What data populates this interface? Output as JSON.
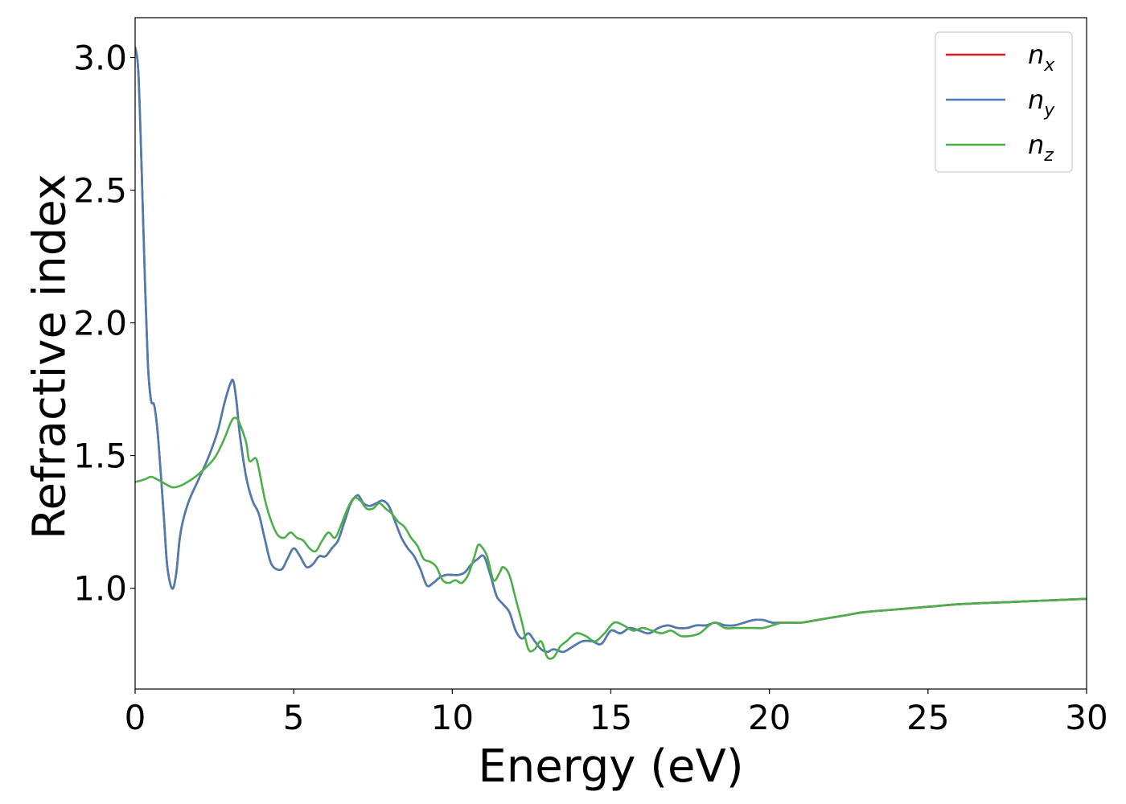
{
  "chart_data": {
    "type": "line",
    "title": "",
    "xlabel": "Energy (eV)",
    "ylabel": "Refractive index",
    "xlim": [
      0,
      30
    ],
    "ylim": [
      0.62,
      3.15
    ],
    "xticks": [
      0,
      5,
      10,
      15,
      20,
      25,
      30
    ],
    "xtick_labels": [
      "0",
      "5",
      "10",
      "15",
      "20",
      "25",
      "30"
    ],
    "yticks": [
      1.0,
      1.5,
      2.0,
      2.5,
      3.0
    ],
    "ytick_labels": [
      "1.0",
      "1.5",
      "2.0",
      "2.5",
      "3.0"
    ],
    "grid": false,
    "legend": {
      "position": "top-right"
    },
    "series": [
      {
        "name": "n",
        "name_sub": "x",
        "color": "#e41a1c",
        "x": [
          0,
          0.1,
          0.2,
          0.3,
          0.4,
          0.5,
          0.6,
          0.7,
          0.8,
          0.9,
          1.0,
          1.1,
          1.2,
          1.3,
          1.4,
          1.5,
          1.7,
          2.0,
          2.3,
          2.6,
          2.8,
          3.0,
          3.1,
          3.2,
          3.3,
          3.5,
          3.7,
          3.9,
          4.1,
          4.3,
          4.6,
          4.8,
          5.0,
          5.2,
          5.4,
          5.6,
          5.8,
          6.0,
          6.2,
          6.4,
          6.6,
          6.8,
          7.0,
          7.1,
          7.2,
          7.4,
          7.6,
          7.8,
          8.0,
          8.2,
          8.4,
          8.6,
          8.8,
          9.0,
          9.2,
          9.4,
          9.6,
          9.8,
          10.0,
          10.2,
          10.4,
          10.6,
          10.8,
          11.0,
          11.2,
          11.4,
          11.6,
          11.8,
          12.0,
          12.2,
          12.4,
          12.6,
          12.8,
          13.0,
          13.2,
          13.5,
          13.8,
          14.1,
          14.4,
          14.7,
          15.0,
          15.3,
          15.6,
          15.9,
          16.2,
          16.5,
          16.8,
          17.1,
          17.4,
          17.7,
          18.0,
          18.3,
          18.6,
          18.9,
          19.2,
          19.5,
          19.8,
          20.1,
          20.4,
          20.7,
          21.0,
          21.5,
          22.0,
          22.5,
          23,
          24,
          25,
          26,
          27,
          28,
          29,
          30
        ],
        "y": [
          3.04,
          2.95,
          2.6,
          2.2,
          1.85,
          1.71,
          1.69,
          1.6,
          1.45,
          1.28,
          1.1,
          1.02,
          1.0,
          1.06,
          1.18,
          1.25,
          1.33,
          1.41,
          1.49,
          1.59,
          1.69,
          1.77,
          1.78,
          1.7,
          1.58,
          1.42,
          1.33,
          1.28,
          1.18,
          1.09,
          1.07,
          1.11,
          1.15,
          1.12,
          1.08,
          1.09,
          1.12,
          1.12,
          1.15,
          1.18,
          1.25,
          1.32,
          1.35,
          1.34,
          1.32,
          1.31,
          1.32,
          1.33,
          1.31,
          1.25,
          1.19,
          1.15,
          1.12,
          1.07,
          1.01,
          1.02,
          1.04,
          1.05,
          1.05,
          1.05,
          1.06,
          1.09,
          1.11,
          1.12,
          1.05,
          0.97,
          0.94,
          0.91,
          0.84,
          0.81,
          0.83,
          0.8,
          0.77,
          0.76,
          0.77,
          0.76,
          0.78,
          0.8,
          0.8,
          0.79,
          0.84,
          0.83,
          0.85,
          0.84,
          0.83,
          0.85,
          0.86,
          0.85,
          0.85,
          0.86,
          0.86,
          0.87,
          0.86,
          0.86,
          0.87,
          0.88,
          0.88,
          0.87,
          0.87,
          0.87,
          0.87,
          0.88,
          0.89,
          0.9,
          0.91,
          0.92,
          0.93,
          0.94,
          0.945,
          0.95,
          0.955,
          0.96
        ]
      },
      {
        "name": "n",
        "name_sub": "y",
        "color": "#4a7eb1",
        "x": [
          0,
          0.1,
          0.2,
          0.3,
          0.4,
          0.5,
          0.6,
          0.7,
          0.8,
          0.9,
          1.0,
          1.1,
          1.2,
          1.3,
          1.4,
          1.5,
          1.7,
          2.0,
          2.3,
          2.6,
          2.8,
          3.0,
          3.1,
          3.2,
          3.3,
          3.5,
          3.7,
          3.9,
          4.1,
          4.3,
          4.6,
          4.8,
          5.0,
          5.2,
          5.4,
          5.6,
          5.8,
          6.0,
          6.2,
          6.4,
          6.6,
          6.8,
          7.0,
          7.1,
          7.2,
          7.4,
          7.6,
          7.8,
          8.0,
          8.2,
          8.4,
          8.6,
          8.8,
          9.0,
          9.2,
          9.4,
          9.6,
          9.8,
          10.0,
          10.2,
          10.4,
          10.6,
          10.8,
          11.0,
          11.2,
          11.4,
          11.6,
          11.8,
          12.0,
          12.2,
          12.4,
          12.6,
          12.8,
          13.0,
          13.2,
          13.5,
          13.8,
          14.1,
          14.4,
          14.7,
          15.0,
          15.3,
          15.6,
          15.9,
          16.2,
          16.5,
          16.8,
          17.1,
          17.4,
          17.7,
          18.0,
          18.3,
          18.6,
          18.9,
          19.2,
          19.5,
          19.8,
          20.1,
          20.4,
          20.7,
          21.0,
          21.5,
          22.0,
          22.5,
          23,
          24,
          25,
          26,
          27,
          28,
          29,
          30
        ],
        "y": [
          3.04,
          2.95,
          2.6,
          2.2,
          1.85,
          1.71,
          1.69,
          1.6,
          1.45,
          1.28,
          1.1,
          1.02,
          1.0,
          1.06,
          1.18,
          1.25,
          1.33,
          1.41,
          1.49,
          1.59,
          1.69,
          1.77,
          1.78,
          1.7,
          1.58,
          1.42,
          1.33,
          1.28,
          1.18,
          1.09,
          1.07,
          1.11,
          1.15,
          1.12,
          1.08,
          1.09,
          1.12,
          1.12,
          1.15,
          1.18,
          1.25,
          1.32,
          1.35,
          1.34,
          1.32,
          1.31,
          1.32,
          1.33,
          1.31,
          1.25,
          1.19,
          1.15,
          1.12,
          1.07,
          1.01,
          1.02,
          1.04,
          1.05,
          1.05,
          1.05,
          1.06,
          1.09,
          1.11,
          1.12,
          1.05,
          0.97,
          0.94,
          0.91,
          0.84,
          0.81,
          0.83,
          0.8,
          0.77,
          0.76,
          0.77,
          0.76,
          0.78,
          0.8,
          0.8,
          0.79,
          0.84,
          0.83,
          0.85,
          0.84,
          0.83,
          0.85,
          0.86,
          0.85,
          0.85,
          0.86,
          0.86,
          0.87,
          0.86,
          0.86,
          0.87,
          0.88,
          0.88,
          0.87,
          0.87,
          0.87,
          0.87,
          0.88,
          0.89,
          0.9,
          0.91,
          0.92,
          0.93,
          0.94,
          0.945,
          0.95,
          0.955,
          0.96
        ]
      },
      {
        "name": "n",
        "name_sub": "z",
        "color": "#4daf4a",
        "x": [
          0,
          0.3,
          0.5,
          0.7,
          1.0,
          1.2,
          1.5,
          2.0,
          2.5,
          2.8,
          3.0,
          3.1,
          3.2,
          3.3,
          3.5,
          3.6,
          3.8,
          3.9,
          4.1,
          4.3,
          4.5,
          4.7,
          4.9,
          5.1,
          5.3,
          5.5,
          5.7,
          5.9,
          6.1,
          6.3,
          6.5,
          6.7,
          6.9,
          7.1,
          7.3,
          7.5,
          7.7,
          7.9,
          8.1,
          8.3,
          8.5,
          8.7,
          8.9,
          9.1,
          9.3,
          9.5,
          9.7,
          9.9,
          10.1,
          10.3,
          10.5,
          10.7,
          10.8,
          10.9,
          11.1,
          11.3,
          11.5,
          11.6,
          11.8,
          12.0,
          12.2,
          12.4,
          12.6,
          12.8,
          13.0,
          13.2,
          13.4,
          13.6,
          13.9,
          14.2,
          14.5,
          14.8,
          15.1,
          15.4,
          15.7,
          16.0,
          16.3,
          16.6,
          16.9,
          17.2,
          17.5,
          17.8,
          18.1,
          18.3,
          18.6,
          18.9,
          19.2,
          19.5,
          19.8,
          20.1,
          20.4,
          20.7,
          21.0,
          21.5,
          22.0,
          22.5,
          23,
          24,
          25,
          26,
          27,
          28,
          29,
          30
        ],
        "y": [
          1.4,
          1.41,
          1.42,
          1.41,
          1.39,
          1.38,
          1.39,
          1.43,
          1.49,
          1.56,
          1.62,
          1.64,
          1.64,
          1.62,
          1.55,
          1.48,
          1.49,
          1.45,
          1.33,
          1.25,
          1.2,
          1.19,
          1.21,
          1.19,
          1.18,
          1.15,
          1.14,
          1.18,
          1.21,
          1.19,
          1.24,
          1.3,
          1.34,
          1.33,
          1.3,
          1.3,
          1.32,
          1.3,
          1.28,
          1.25,
          1.23,
          1.19,
          1.16,
          1.11,
          1.1,
          1.08,
          1.03,
          1.02,
          1.03,
          1.02,
          1.05,
          1.12,
          1.16,
          1.16,
          1.12,
          1.03,
          1.06,
          1.08,
          1.05,
          0.96,
          0.87,
          0.77,
          0.77,
          0.8,
          0.74,
          0.74,
          0.78,
          0.8,
          0.83,
          0.82,
          0.8,
          0.83,
          0.87,
          0.86,
          0.84,
          0.85,
          0.84,
          0.83,
          0.84,
          0.82,
          0.82,
          0.83,
          0.86,
          0.87,
          0.85,
          0.85,
          0.85,
          0.85,
          0.85,
          0.86,
          0.87,
          0.87,
          0.87,
          0.88,
          0.89,
          0.9,
          0.91,
          0.92,
          0.93,
          0.94,
          0.945,
          0.95,
          0.955,
          0.96
        ]
      }
    ]
  }
}
